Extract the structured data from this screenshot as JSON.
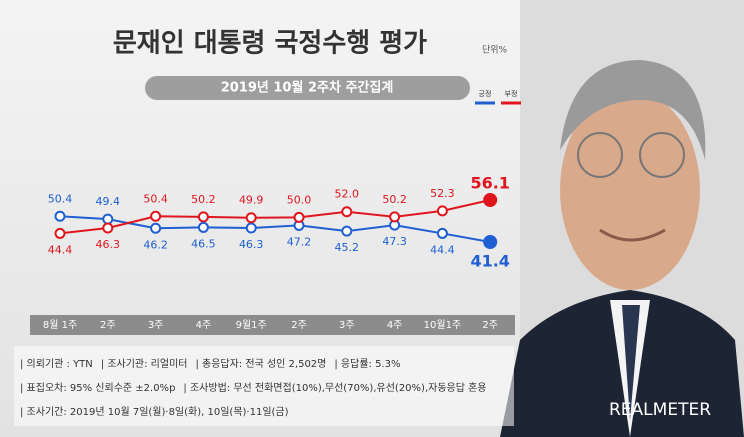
{
  "chart_data": {
    "type": "line",
    "title": "문재인 대통령 국정수행 평가",
    "unit": "단위%",
    "subtitle": "2019년 10월 2주차 주간집계",
    "categories": [
      "8월 1주",
      "2주",
      "3주",
      "4주",
      "9월1주",
      "2주",
      "3주",
      "4주",
      "10월1주",
      "2주"
    ],
    "series": [
      {
        "name": "긍정",
        "color": "#1f5fd1",
        "values": [
          50.4,
          49.4,
          46.2,
          46.5,
          46.3,
          47.2,
          45.2,
          47.3,
          44.4,
          41.4
        ],
        "value_labels": [
          "50.4",
          "49.4",
          "46.2",
          "46.5",
          "46.3",
          "47.2",
          "45.2",
          "47.3",
          "44.4",
          "41.4"
        ]
      },
      {
        "name": "부정",
        "color": "#e0161e",
        "values": [
          44.4,
          46.3,
          50.4,
          50.2,
          49.9,
          50.0,
          52.0,
          50.2,
          52.3,
          56.1
        ],
        "value_labels": [
          "44.4",
          "46.3",
          "50.4",
          "50.2",
          "49.9",
          "50.0",
          "52.0",
          "50.2",
          "52.3",
          "56.1"
        ]
      }
    ],
    "notes": [
      [
        "| 의뢰기관 : YTN",
        "| 조사기관: 리얼미터",
        "| 총응답자: 전국 성인 2,502명",
        "| 응답률: 5.3%"
      ],
      [
        "| 표집오차: 95% 신뢰수준 ±2.0%p",
        "| 조사방법: 무선 전화면접(10%),무선(70%),유선(20%),자동응답 혼용"
      ],
      [
        "| 조사기간: 2019년 10월 7일(월)·8일(화), 10일(목)·11일(금)"
      ]
    ],
    "brand": "REALMETER"
  }
}
